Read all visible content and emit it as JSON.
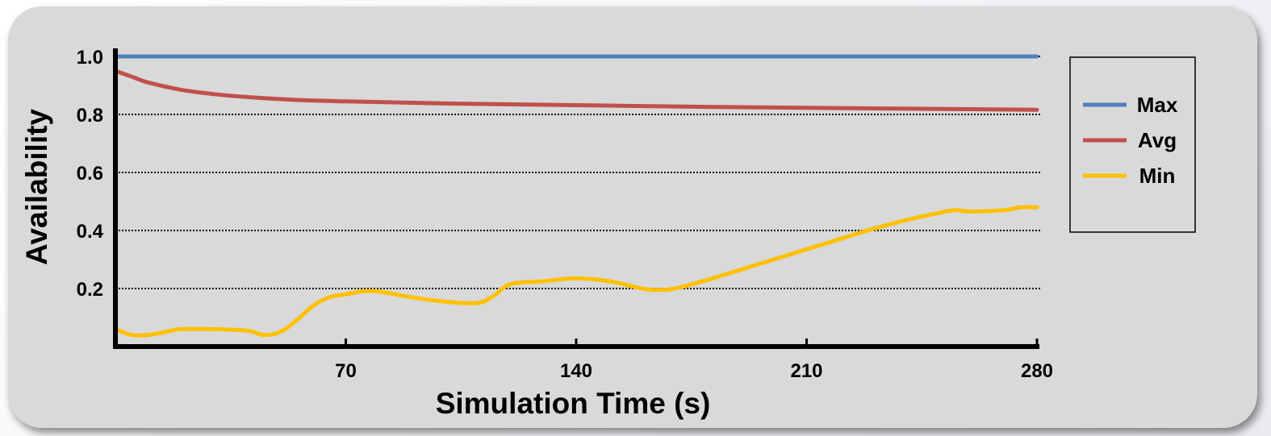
{
  "chart_data": {
    "type": "line",
    "xlabel": "Simulation Time (s)",
    "ylabel": "Availability",
    "xlim": [
      0,
      280
    ],
    "ylim": [
      0,
      1.0
    ],
    "x_ticks": [
      70,
      140,
      210,
      280
    ],
    "y_ticks": [
      0.2,
      0.4,
      0.6,
      0.8,
      1.0
    ],
    "y_tick_labels": [
      "0.2",
      "0.4",
      "0.6",
      "0.8",
      "1.0"
    ],
    "grid": "horizontal dotted",
    "legend_position": "right",
    "series": [
      {
        "name": "Max",
        "color": "#4f81bd",
        "x": [
          0,
          280
        ],
        "y": [
          1.0,
          1.0
        ]
      },
      {
        "name": "Avg",
        "color": "#c0504d",
        "x": [
          0,
          5,
          10,
          20,
          30,
          40,
          55,
          70,
          100,
          140,
          180,
          220,
          260,
          280
        ],
        "y": [
          0.95,
          0.93,
          0.91,
          0.885,
          0.87,
          0.86,
          0.85,
          0.845,
          0.838,
          0.832,
          0.826,
          0.822,
          0.818,
          0.816
        ]
      },
      {
        "name": "Min",
        "color": "#ffc000",
        "x": [
          0,
          5,
          10,
          15,
          20,
          30,
          40,
          45,
          50,
          55,
          60,
          65,
          70,
          75,
          80,
          90,
          100,
          110,
          115,
          120,
          130,
          140,
          150,
          160,
          165,
          170,
          180,
          190,
          200,
          210,
          220,
          230,
          240,
          250,
          255,
          260,
          270,
          275,
          280
        ],
        "y": [
          0.06,
          0.04,
          0.04,
          0.05,
          0.06,
          0.06,
          0.055,
          0.04,
          0.05,
          0.09,
          0.14,
          0.17,
          0.18,
          0.19,
          0.19,
          0.17,
          0.155,
          0.15,
          0.175,
          0.215,
          0.225,
          0.235,
          0.225,
          0.2,
          0.195,
          0.2,
          0.23,
          0.265,
          0.3,
          0.335,
          0.37,
          0.405,
          0.435,
          0.46,
          0.47,
          0.465,
          0.47,
          0.48,
          0.48
        ]
      }
    ]
  }
}
